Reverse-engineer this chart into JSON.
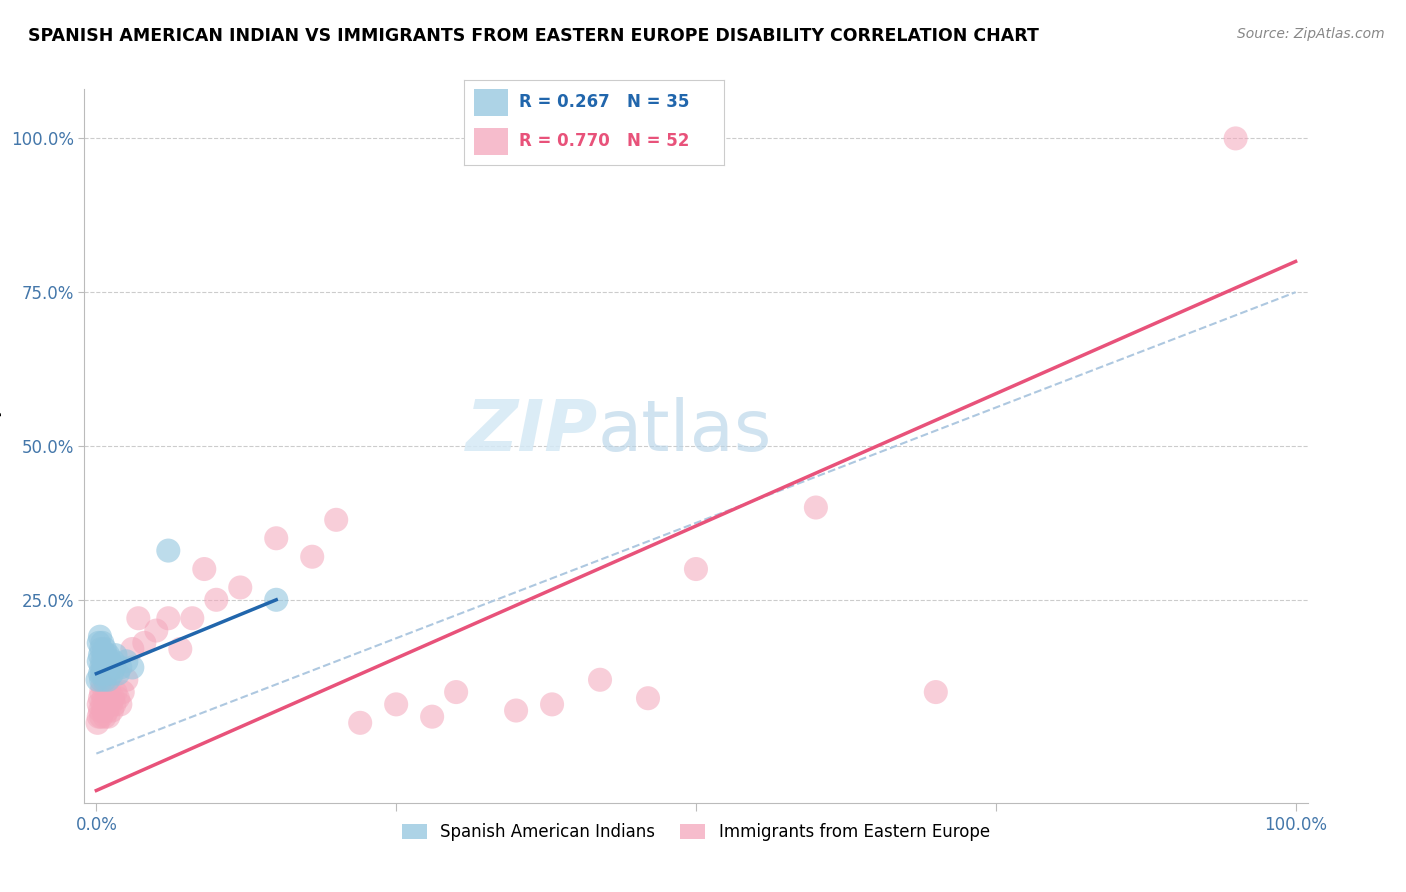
{
  "title": "SPANISH AMERICAN INDIAN VS IMMIGRANTS FROM EASTERN EUROPE DISABILITY CORRELATION CHART",
  "source": "Source: ZipAtlas.com",
  "ylabel": "Disability",
  "xlabel": "",
  "xlim": [
    -0.01,
    1.01
  ],
  "ylim": [
    -0.08,
    1.08
  ],
  "xtick_positions": [
    0.0,
    0.25,
    0.5,
    0.75,
    1.0
  ],
  "xtick_labels": [
    "0.0%",
    "",
    "",
    "",
    "100.0%"
  ],
  "ytick_positions": [
    0.25,
    0.5,
    0.75,
    1.0
  ],
  "ytick_labels": [
    "25.0%",
    "50.0%",
    "75.0%",
    "100.0%"
  ],
  "blue_R": 0.267,
  "blue_N": 35,
  "pink_R": 0.77,
  "pink_N": 52,
  "blue_label": "Spanish American Indians",
  "pink_label": "Immigrants from Eastern Europe",
  "blue_color": "#92c5de",
  "pink_color": "#f4a6bb",
  "blue_line_color": "#2166ac",
  "pink_line_color": "#e8527a",
  "dashed_line_color": "#aec8e0",
  "watermark_color": "#d5e9f5",
  "blue_x": [
    0.001,
    0.002,
    0.002,
    0.003,
    0.003,
    0.003,
    0.004,
    0.004,
    0.004,
    0.005,
    0.005,
    0.005,
    0.006,
    0.006,
    0.007,
    0.007,
    0.008,
    0.008,
    0.009,
    0.009,
    0.01,
    0.01,
    0.01,
    0.011,
    0.012,
    0.013,
    0.014,
    0.015,
    0.016,
    0.018,
    0.02,
    0.025,
    0.03,
    0.06,
    0.15
  ],
  "blue_y": [
    0.12,
    0.15,
    0.18,
    0.13,
    0.16,
    0.19,
    0.14,
    0.17,
    0.12,
    0.15,
    0.18,
    0.13,
    0.16,
    0.14,
    0.12,
    0.17,
    0.14,
    0.16,
    0.13,
    0.15,
    0.14,
    0.16,
    0.12,
    0.15,
    0.14,
    0.13,
    0.15,
    0.14,
    0.16,
    0.13,
    0.14,
    0.15,
    0.14,
    0.33,
    0.25
  ],
  "pink_x": [
    0.001,
    0.002,
    0.002,
    0.003,
    0.003,
    0.004,
    0.004,
    0.005,
    0.005,
    0.006,
    0.006,
    0.007,
    0.008,
    0.008,
    0.009,
    0.01,
    0.01,
    0.011,
    0.012,
    0.013,
    0.014,
    0.015,
    0.016,
    0.018,
    0.02,
    0.022,
    0.025,
    0.03,
    0.035,
    0.04,
    0.05,
    0.06,
    0.07,
    0.08,
    0.09,
    0.1,
    0.12,
    0.15,
    0.18,
    0.2,
    0.22,
    0.25,
    0.28,
    0.3,
    0.35,
    0.38,
    0.42,
    0.46,
    0.5,
    0.6,
    0.7,
    0.95
  ],
  "pink_y": [
    0.05,
    0.08,
    0.06,
    0.09,
    0.07,
    0.06,
    0.1,
    0.08,
    0.11,
    0.07,
    0.09,
    0.06,
    0.08,
    0.11,
    0.07,
    0.09,
    0.06,
    0.1,
    0.08,
    0.07,
    0.09,
    0.08,
    0.1,
    0.09,
    0.08,
    0.1,
    0.12,
    0.17,
    0.22,
    0.18,
    0.2,
    0.22,
    0.17,
    0.22,
    0.3,
    0.25,
    0.27,
    0.35,
    0.32,
    0.38,
    0.05,
    0.08,
    0.06,
    0.1,
    0.07,
    0.08,
    0.12,
    0.09,
    0.3,
    0.4,
    0.1,
    1.0
  ],
  "blue_line_x": [
    0.0,
    0.15
  ],
  "blue_line_y": [
    0.13,
    0.25
  ],
  "pink_line_x": [
    0.0,
    1.0
  ],
  "pink_line_y": [
    -0.06,
    0.8
  ],
  "dashed_line_x": [
    0.0,
    1.0
  ],
  "dashed_line_y": [
    0.0,
    0.75
  ]
}
